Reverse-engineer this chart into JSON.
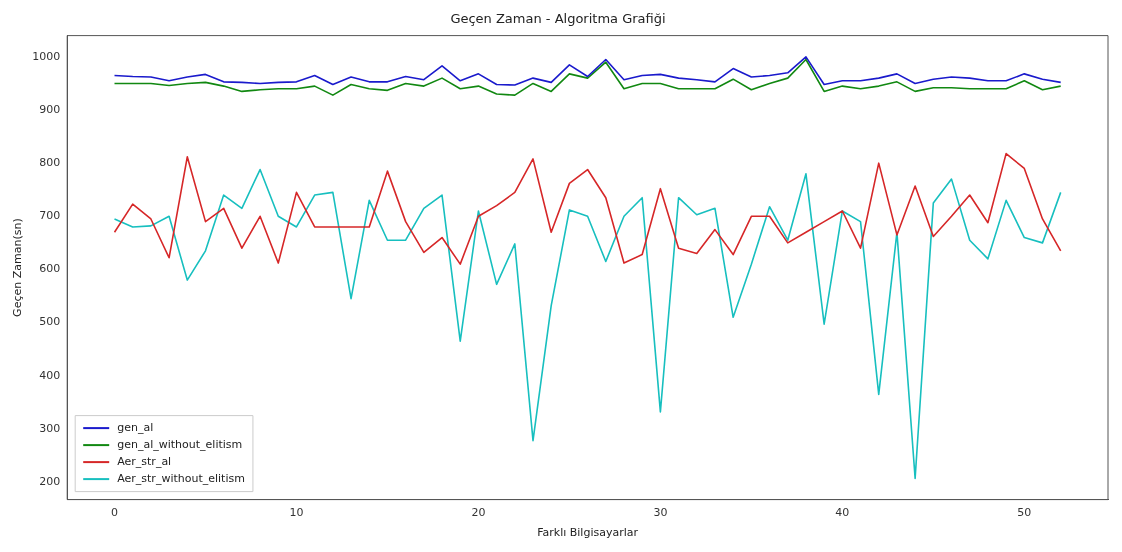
{
  "chart_data": {
    "type": "line",
    "title": "Geçen Zaman - Algoritma Grafiği",
    "xlabel": "Farklı Bilgisayarlar",
    "ylabel": "Geçen Zaman(sn)",
    "x": [
      0,
      1,
      2,
      3,
      4,
      5,
      6,
      7,
      8,
      9,
      10,
      11,
      12,
      13,
      14,
      15,
      16,
      17,
      18,
      19,
      20,
      21,
      22,
      23,
      24,
      25,
      26,
      27,
      28,
      29,
      30,
      31,
      32,
      33,
      34,
      35,
      36,
      37,
      38,
      39,
      40,
      41,
      42,
      43,
      44,
      45,
      46,
      47,
      48,
      49,
      50,
      51,
      52
    ],
    "xlim": [
      -2.6,
      54.6
    ],
    "xticks": [
      0,
      10,
      20,
      30,
      40,
      50
    ],
    "ylim": [
      167,
      1040
    ],
    "yticks": [
      200,
      300,
      400,
      500,
      600,
      700,
      800,
      900,
      1000
    ],
    "grid": false,
    "legend": "bottom left",
    "marker": "none",
    "line_style": "solid",
    "series": [
      {
        "name": "gen_al",
        "color": "#1a1acc",
        "values": [
          965,
          963,
          962,
          955,
          962,
          967,
          953,
          952,
          950,
          952,
          953,
          965,
          948,
          962,
          953,
          953,
          963,
          957,
          983,
          955,
          968,
          948,
          947,
          960,
          952,
          985,
          963,
          995,
          957,
          965,
          967,
          960,
          957,
          953,
          978,
          962,
          965,
          970,
          1000,
          948,
          955,
          955,
          960,
          968,
          950,
          958,
          962,
          960,
          955,
          955,
          968,
          958,
          952
        ]
      },
      {
        "name": "gen_al_without_elitism",
        "color": "#118811",
        "values": [
          950,
          950,
          950,
          946,
          950,
          952,
          945,
          935,
          938,
          940,
          940,
          945,
          928,
          948,
          940,
          937,
          950,
          945,
          960,
          940,
          945,
          930,
          928,
          950,
          935,
          968,
          960,
          990,
          940,
          950,
          950,
          940,
          940,
          940,
          958,
          938,
          950,
          960,
          995,
          935,
          945,
          940,
          945,
          953,
          935,
          942,
          942,
          940,
          940,
          940,
          955,
          938,
          945
        ]
      },
      {
        "name": "Aer_str_al",
        "color": "#d62728",
        "values": [
          670,
          723,
          695,
          622,
          812,
          690,
          715,
          640,
          700,
          612,
          745,
          680,
          680,
          680,
          680,
          785,
          690,
          632,
          660,
          610,
          700,
          720,
          745,
          808,
          670,
          762,
          788,
          735,
          612,
          628,
          752,
          640,
          630,
          675,
          628,
          700,
          700,
          650,
          670,
          690,
          710,
          640,
          800,
          665,
          757,
          662,
          700,
          740,
          688,
          818,
          790,
          695,
          635
        ]
      },
      {
        "name": "Aer_str_without_elitism",
        "color": "#17bfbf",
        "values": [
          695,
          680,
          682,
          700,
          580,
          635,
          740,
          715,
          788,
          700,
          680,
          740,
          745,
          545,
          730,
          655,
          655,
          715,
          740,
          465,
          710,
          572,
          648,
          278,
          532,
          712,
          700,
          615,
          700,
          735,
          332,
          735,
          703,
          715,
          510,
          610,
          718,
          655,
          780,
          497,
          710,
          690,
          365,
          670,
          207,
          725,
          770,
          655,
          620,
          730,
          660,
          650,
          745
        ]
      }
    ]
  }
}
